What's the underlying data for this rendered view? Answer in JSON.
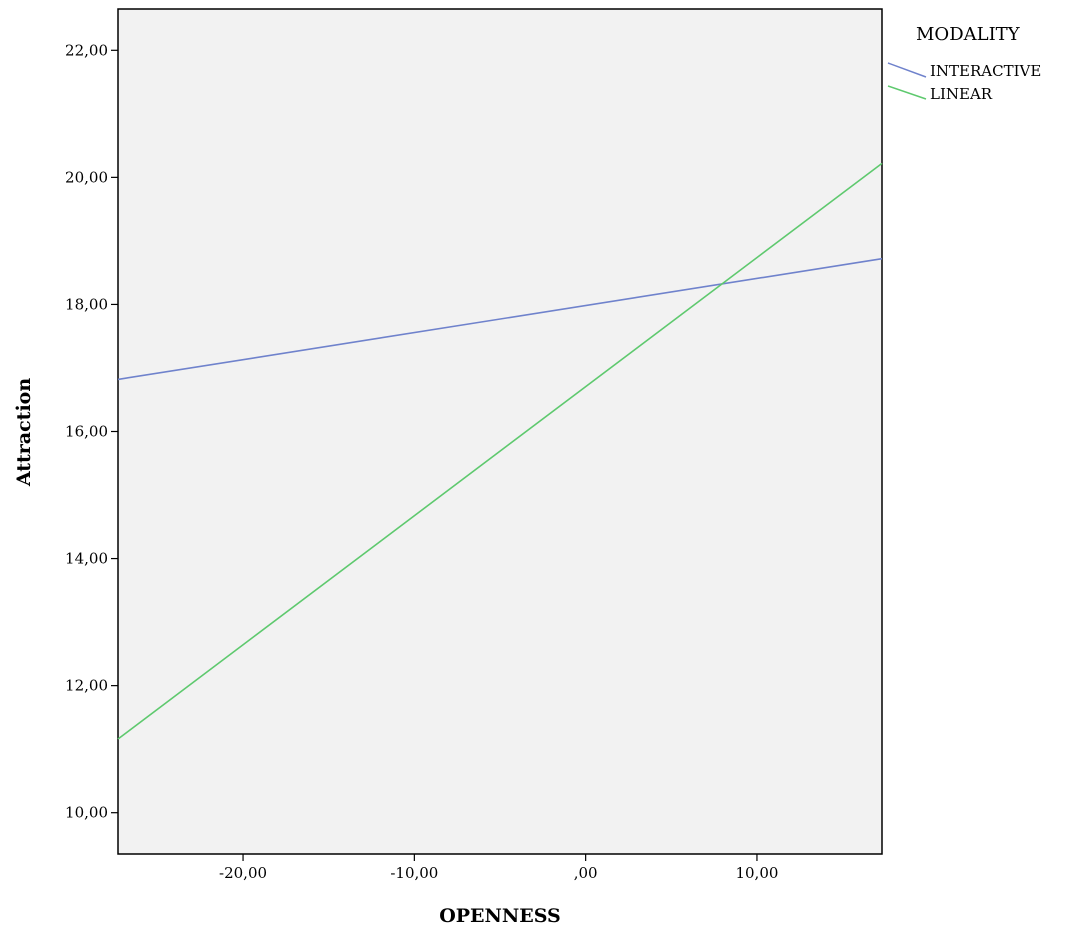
{
  "chart_data": {
    "type": "line",
    "title": "",
    "xlabel": "OPENNESS",
    "ylabel": "Attraction",
    "xlim": [
      -27.3,
      17.3
    ],
    "ylim": [
      9.35,
      22.65
    ],
    "x_ticks": [
      {
        "value": -20,
        "label": "-20,00"
      },
      {
        "value": -10,
        "label": "-10,00"
      },
      {
        "value": 0,
        "label": ",00"
      },
      {
        "value": 10,
        "label": "10,00"
      }
    ],
    "y_ticks": [
      {
        "value": 10,
        "label": "10,00"
      },
      {
        "value": 12,
        "label": "12,00"
      },
      {
        "value": 14,
        "label": "14,00"
      },
      {
        "value": 16,
        "label": "16,00"
      },
      {
        "value": 18,
        "label": "18,00"
      },
      {
        "value": 20,
        "label": "20,00"
      },
      {
        "value": 22,
        "label": "22,00"
      }
    ],
    "grid": false,
    "plot_background": "#f2f2f2",
    "legend": {
      "title": "MODALITY",
      "placement": "right-top"
    },
    "series": [
      {
        "name": "INTERACTIVE",
        "color": "#6f82cc",
        "x": [
          -27.3,
          17.3
        ],
        "y": [
          16.82,
          18.72
        ]
      },
      {
        "name": "LINEAR",
        "color": "#5ec96e",
        "x": [
          -27.3,
          17.3
        ],
        "y": [
          11.16,
          20.22
        ]
      }
    ]
  }
}
